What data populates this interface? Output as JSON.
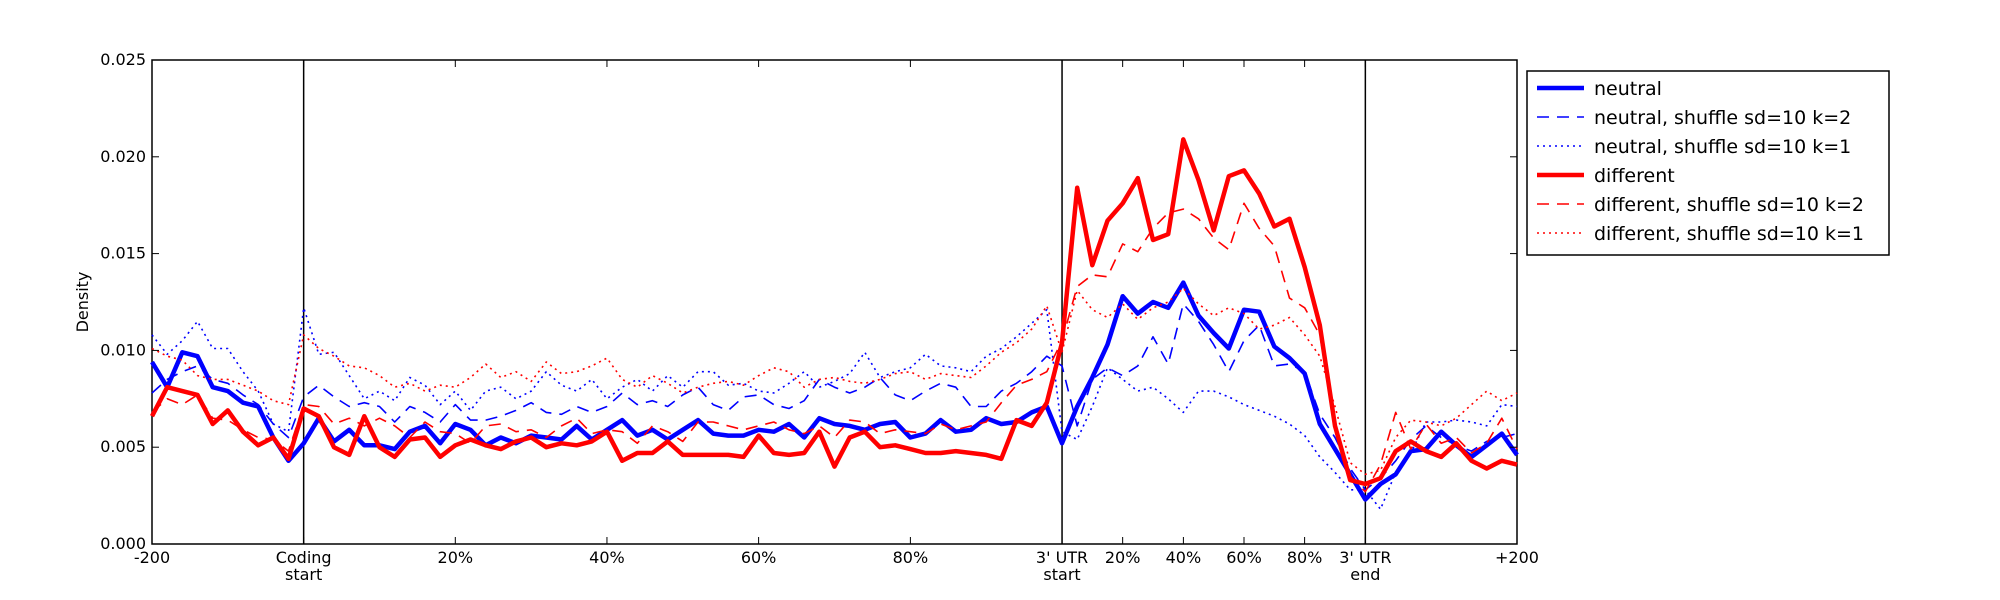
{
  "chart_data": {
    "type": "line",
    "title": "",
    "xlabel": "",
    "ylabel": "Density",
    "ylim": [
      0,
      0.025
    ],
    "yticks": [
      "0.000",
      "0.005",
      "0.010",
      "0.015",
      "0.020",
      "0.025"
    ],
    "x_tick_labels": [
      {
        "lines": [
          "-200"
        ]
      },
      {
        "lines": [
          "Coding",
          "start"
        ]
      },
      {
        "lines": [
          "20%"
        ]
      },
      {
        "lines": [
          "40%"
        ]
      },
      {
        "lines": [
          "60%"
        ]
      },
      {
        "lines": [
          "80%"
        ]
      },
      {
        "lines": [
          "3' UTR",
          "start"
        ]
      },
      {
        "lines": [
          "20%"
        ]
      },
      {
        "lines": [
          "40%"
        ]
      },
      {
        "lines": [
          "60%"
        ]
      },
      {
        "lines": [
          "80%"
        ]
      },
      {
        "lines": [
          "3' UTR",
          "end"
        ]
      },
      {
        "lines": [
          "+200"
        ]
      }
    ],
    "region_boundaries": [
      "Coding start",
      "3' UTR start",
      "3' UTR end"
    ],
    "grid": false,
    "legend_position": "outside right, top",
    "series": [
      {
        "name": "neutral",
        "color": "#0000ff",
        "style": "solid",
        "width": "thick",
        "values": [
          0.0094,
          0.0081,
          0.0099,
          0.0097,
          0.0081,
          0.0079,
          0.0073,
          0.0071,
          0.0055,
          0.0043,
          0.0052,
          0.0065,
          0.0053,
          0.0059,
          0.0051,
          0.0051,
          0.0049,
          0.0058,
          0.0061,
          0.0052,
          0.0062,
          0.0059,
          0.0051,
          0.0055,
          0.0052,
          0.0056,
          0.0055,
          0.0054,
          0.0061,
          0.0054,
          0.0059,
          0.0064,
          0.0056,
          0.0059,
          0.0054,
          0.0059,
          0.0064,
          0.0057,
          0.0056,
          0.0056,
          0.0059,
          0.0058,
          0.0062,
          0.0055,
          0.0065,
          0.0062,
          0.0061,
          0.0059,
          0.0062,
          0.0063,
          0.0055,
          0.0057,
          0.0064,
          0.0058,
          0.0059,
          0.0065,
          0.0062,
          0.0063,
          0.0068,
          0.0071,
          0.0052,
          0.0071,
          0.0086,
          0.0103,
          0.0128,
          0.0119,
          0.0125,
          0.0122,
          0.0135,
          0.0118,
          0.0109,
          0.0101,
          0.0121,
          0.012,
          0.0102,
          0.0096,
          0.0088,
          0.0062,
          0.0049,
          0.0036,
          0.0023,
          0.0031,
          0.0036,
          0.0048,
          0.0049,
          0.0058,
          0.0051,
          0.0045,
          0.0051,
          0.0057,
          0.0046
        ]
      },
      {
        "name": "neutral, shuffle sd=10 k=2",
        "color": "#0000ff",
        "style": "dashed",
        "width": "thin",
        "values": [
          0.0078,
          0.0085,
          0.0089,
          0.0092,
          0.0085,
          0.0083,
          0.0077,
          0.0072,
          0.0062,
          0.0055,
          0.0076,
          0.0082,
          0.0076,
          0.0071,
          0.0073,
          0.0071,
          0.0063,
          0.0071,
          0.0068,
          0.0063,
          0.0072,
          0.0064,
          0.0064,
          0.0066,
          0.0069,
          0.0073,
          0.0068,
          0.0067,
          0.0071,
          0.0068,
          0.0071,
          0.0078,
          0.0072,
          0.0074,
          0.0071,
          0.0077,
          0.0081,
          0.0072,
          0.0069,
          0.0076,
          0.0077,
          0.0072,
          0.007,
          0.0074,
          0.0085,
          0.0081,
          0.0078,
          0.0081,
          0.0086,
          0.0077,
          0.0074,
          0.0079,
          0.0083,
          0.0081,
          0.0071,
          0.0071,
          0.0079,
          0.0083,
          0.0089,
          0.0097,
          0.0092,
          0.0061,
          0.0085,
          0.0091,
          0.0087,
          0.0092,
          0.0107,
          0.0093,
          0.0124,
          0.0115,
          0.0103,
          0.0089,
          0.0105,
          0.0113,
          0.0092,
          0.0093,
          0.0089,
          0.0067,
          0.0055,
          0.0039,
          0.0028,
          0.0034,
          0.0043,
          0.0054,
          0.0061,
          0.0055,
          0.0051,
          0.0048,
          0.0053,
          0.0055,
          0.0057
        ]
      },
      {
        "name": "neutral, shuffle sd=10 k=1",
        "color": "#0000ff",
        "style": "dotted",
        "width": "thin",
        "values": [
          0.0108,
          0.0098,
          0.0105,
          0.0115,
          0.0101,
          0.0101,
          0.0089,
          0.0079,
          0.0062,
          0.0058,
          0.0122,
          0.0098,
          0.0099,
          0.0087,
          0.0075,
          0.0079,
          0.0074,
          0.0086,
          0.0082,
          0.0072,
          0.0079,
          0.0069,
          0.0079,
          0.0081,
          0.0075,
          0.0079,
          0.0089,
          0.0082,
          0.0079,
          0.0085,
          0.0075,
          0.0081,
          0.0085,
          0.0079,
          0.0087,
          0.0081,
          0.0089,
          0.0089,
          0.0082,
          0.0083,
          0.0079,
          0.0078,
          0.0083,
          0.0089,
          0.0081,
          0.0084,
          0.0088,
          0.0099,
          0.0086,
          0.0089,
          0.0091,
          0.0098,
          0.0092,
          0.0091,
          0.0089,
          0.0097,
          0.0101,
          0.0107,
          0.0114,
          0.0121,
          0.0058,
          0.0054,
          0.0071,
          0.0091,
          0.0085,
          0.0079,
          0.0081,
          0.0075,
          0.0068,
          0.0079,
          0.0079,
          0.0076,
          0.0072,
          0.0069,
          0.0066,
          0.0062,
          0.0056,
          0.0045,
          0.0037,
          0.0028,
          0.0028,
          0.0018,
          0.0037,
          0.0047,
          0.0063,
          0.0063,
          0.0064,
          0.0063,
          0.0061,
          0.0072,
          0.0071
        ]
      },
      {
        "name": "different",
        "color": "#ff0000",
        "style": "solid",
        "width": "thick",
        "values": [
          0.0066,
          0.0081,
          0.0079,
          0.0077,
          0.0062,
          0.0069,
          0.0058,
          0.0051,
          0.0055,
          0.0044,
          0.007,
          0.0066,
          0.005,
          0.0046,
          0.0066,
          0.005,
          0.0045,
          0.0054,
          0.0055,
          0.0045,
          0.0051,
          0.0054,
          0.0051,
          0.0049,
          0.0053,
          0.0055,
          0.005,
          0.0052,
          0.0051,
          0.0053,
          0.0058,
          0.0043,
          0.0047,
          0.0047,
          0.0053,
          0.0046,
          0.0046,
          0.0046,
          0.0046,
          0.0045,
          0.0056,
          0.0047,
          0.0046,
          0.0047,
          0.0058,
          0.004,
          0.0055,
          0.0058,
          0.005,
          0.0051,
          0.0049,
          0.0047,
          0.0047,
          0.0048,
          0.0047,
          0.0046,
          0.0044,
          0.0064,
          0.0061,
          0.0073,
          0.0104,
          0.0184,
          0.0144,
          0.0167,
          0.0176,
          0.0189,
          0.0157,
          0.016,
          0.0209,
          0.0188,
          0.0162,
          0.019,
          0.0193,
          0.0181,
          0.0164,
          0.0168,
          0.0143,
          0.0113,
          0.0061,
          0.0033,
          0.0031,
          0.0034,
          0.0048,
          0.0053,
          0.0048,
          0.0045,
          0.0052,
          0.0043,
          0.0039,
          0.0043,
          0.0041
        ]
      },
      {
        "name": "different, shuffle sd=10 k=2",
        "color": "#ff0000",
        "style": "dashed",
        "width": "thin",
        "values": [
          0.0068,
          0.0075,
          0.0072,
          0.0077,
          0.0065,
          0.0064,
          0.0059,
          0.0055,
          0.0054,
          0.0048,
          0.0072,
          0.0071,
          0.0062,
          0.0065,
          0.0061,
          0.0065,
          0.0061,
          0.0055,
          0.0063,
          0.0058,
          0.0057,
          0.0052,
          0.0061,
          0.0062,
          0.0058,
          0.0059,
          0.0055,
          0.0061,
          0.0065,
          0.0057,
          0.0059,
          0.0058,
          0.0052,
          0.0061,
          0.0058,
          0.0053,
          0.0063,
          0.0063,
          0.0061,
          0.0059,
          0.0061,
          0.0063,
          0.0059,
          0.0057,
          0.0061,
          0.0055,
          0.0064,
          0.0063,
          0.0057,
          0.0059,
          0.0058,
          0.0057,
          0.0062,
          0.0059,
          0.0061,
          0.0063,
          0.0073,
          0.0082,
          0.0085,
          0.0089,
          0.0105,
          0.0133,
          0.0139,
          0.0138,
          0.0155,
          0.0151,
          0.0163,
          0.0171,
          0.0173,
          0.0168,
          0.0158,
          0.0152,
          0.0176,
          0.0163,
          0.0154,
          0.0127,
          0.0122,
          0.0108,
          0.0063,
          0.0035,
          0.0027,
          0.0041,
          0.0068,
          0.0049,
          0.0062,
          0.0052,
          0.0055,
          0.0047,
          0.0052,
          0.0065,
          0.0049
        ]
      },
      {
        "name": "different, shuffle sd=10 k=1",
        "color": "#ff0000",
        "style": "dotted",
        "width": "thin",
        "values": [
          0.0101,
          0.0097,
          0.0095,
          0.0087,
          0.0085,
          0.0085,
          0.0082,
          0.0079,
          0.0074,
          0.0072,
          0.0108,
          0.0101,
          0.0097,
          0.0092,
          0.0091,
          0.0087,
          0.0081,
          0.0083,
          0.0079,
          0.0082,
          0.0081,
          0.0086,
          0.0093,
          0.0086,
          0.0089,
          0.0084,
          0.0094,
          0.0088,
          0.0089,
          0.0092,
          0.0096,
          0.0085,
          0.0081,
          0.0087,
          0.0083,
          0.0078,
          0.0081,
          0.0083,
          0.0084,
          0.0082,
          0.0087,
          0.0091,
          0.0089,
          0.0081,
          0.0085,
          0.0086,
          0.0084,
          0.0083,
          0.0085,
          0.0088,
          0.0089,
          0.0085,
          0.0088,
          0.0087,
          0.0086,
          0.0092,
          0.0099,
          0.0104,
          0.0111,
          0.0123,
          0.0099,
          0.0131,
          0.0121,
          0.0117,
          0.0124,
          0.0116,
          0.0122,
          0.0125,
          0.0132,
          0.0124,
          0.0118,
          0.0122,
          0.0119,
          0.0111,
          0.0113,
          0.0117,
          0.0108,
          0.0097,
          0.0071,
          0.0042,
          0.0036,
          0.0038,
          0.0055,
          0.0064,
          0.0063,
          0.0061,
          0.0065,
          0.0072,
          0.0079,
          0.0074,
          0.0078
        ]
      }
    ]
  }
}
